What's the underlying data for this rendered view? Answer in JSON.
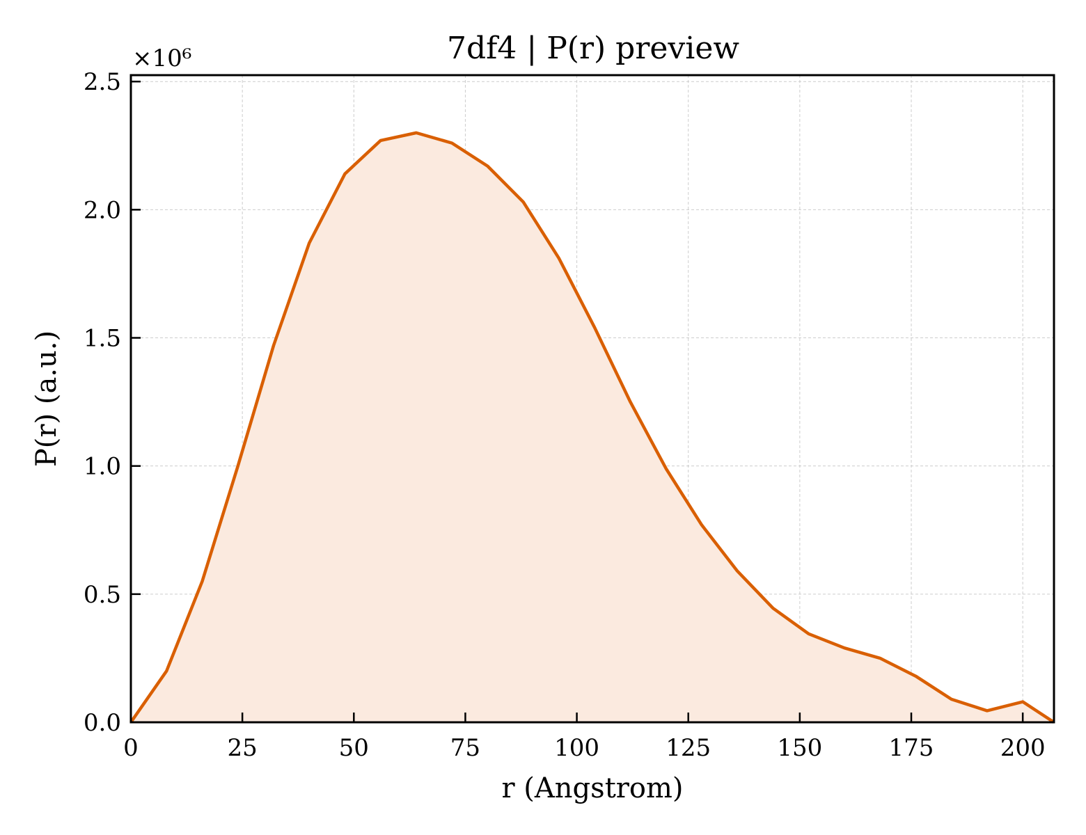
{
  "chart_data": {
    "type": "area",
    "title": "7df4 | P(r) preview",
    "xlabel": "r (Angstrom)",
    "ylabel": "P(r) (a.u.)",
    "y_offset_label": "×10⁶",
    "xlim": [
      0,
      207
    ],
    "ylim": [
      0,
      2.5
    ],
    "xticks": [
      0,
      25,
      50,
      75,
      100,
      125,
      150,
      175,
      200
    ],
    "yticks": [
      0.0,
      0.5,
      1.0,
      1.5,
      2.0,
      2.5
    ],
    "ytick_labels": [
      "0.0",
      "0.5",
      "1.0",
      "1.5",
      "2.0",
      "2.5"
    ],
    "grid": true,
    "line_color": "#d95f02",
    "fill_color": "#fbeadf",
    "series": [
      {
        "x": [
          0,
          8,
          16,
          24,
          32,
          40,
          48,
          56,
          64,
          72,
          80,
          88,
          96,
          104,
          112,
          120,
          128,
          136,
          144,
          152,
          160,
          168,
          176,
          184,
          192,
          200,
          207
        ],
        "y": [
          0.0,
          0.2,
          0.55,
          1.0,
          1.47,
          1.87,
          2.14,
          2.27,
          2.3,
          2.26,
          2.17,
          2.03,
          1.81,
          1.54,
          1.25,
          0.99,
          0.77,
          0.59,
          0.445,
          0.345,
          0.29,
          0.25,
          0.18,
          0.09,
          0.045,
          0.08,
          0.0
        ]
      }
    ]
  }
}
